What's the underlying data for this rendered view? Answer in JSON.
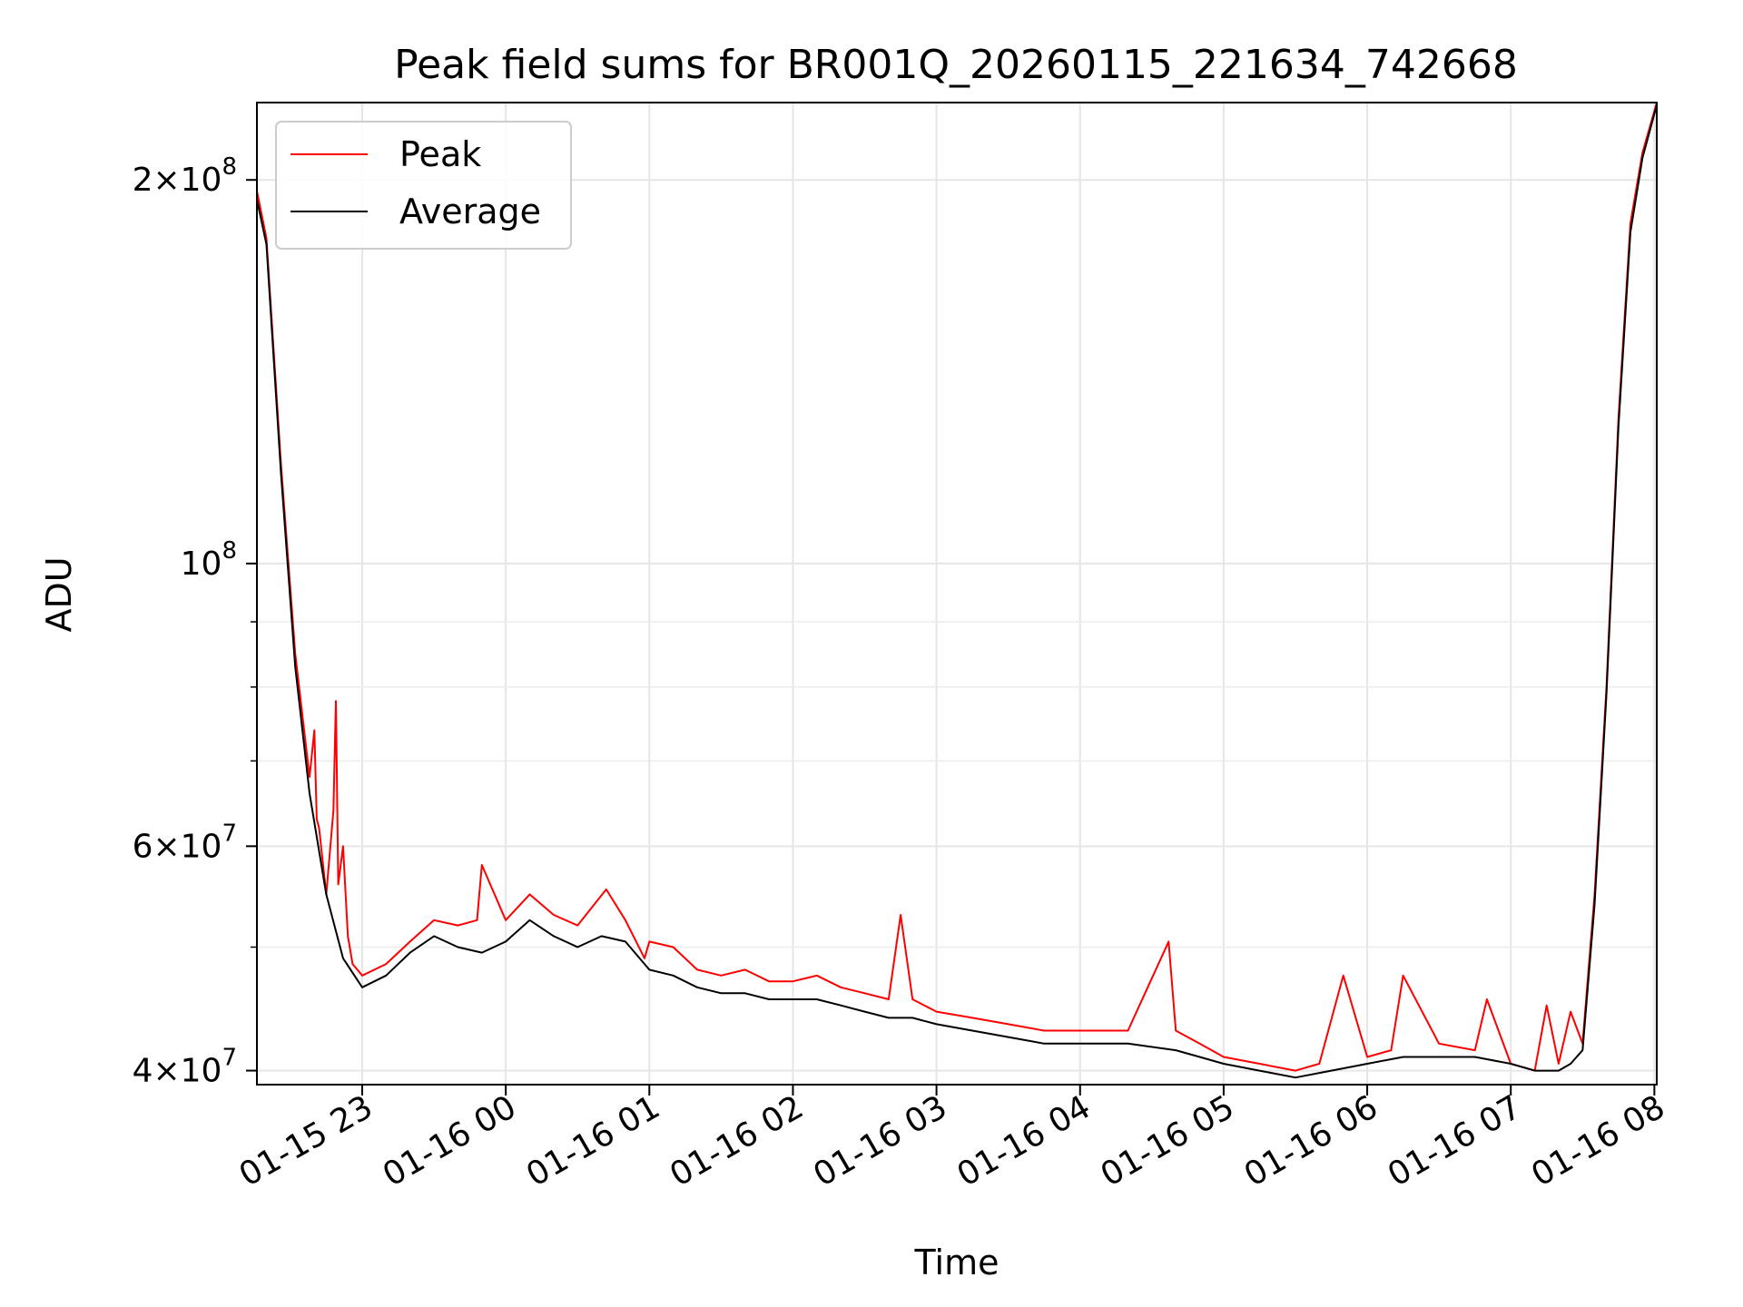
{
  "chart_data": {
    "type": "line",
    "title": "Peak field sums for BR001Q_20260115_221634_742668",
    "xlabel": "Time",
    "ylabel": "ADU",
    "yscale": "log",
    "ylim": [
      39000000,
      230000000
    ],
    "xlim": [
      "2026-01-15 22:16",
      "2026-01-16 08:01"
    ],
    "grid": true,
    "legend_position": "upper-left",
    "x_ticks": [
      {
        "value": "2026-01-15 23:00",
        "label": "01-15 23"
      },
      {
        "value": "2026-01-16 00:00",
        "label": "01-16 00"
      },
      {
        "value": "2026-01-16 01:00",
        "label": "01-16 01"
      },
      {
        "value": "2026-01-16 02:00",
        "label": "01-16 02"
      },
      {
        "value": "2026-01-16 03:00",
        "label": "01-16 03"
      },
      {
        "value": "2026-01-16 04:00",
        "label": "01-16 04"
      },
      {
        "value": "2026-01-16 05:00",
        "label": "01-16 05"
      },
      {
        "value": "2026-01-16 06:00",
        "label": "01-16 06"
      },
      {
        "value": "2026-01-16 07:00",
        "label": "01-16 07"
      },
      {
        "value": "2026-01-16 08:00",
        "label": "01-16 08"
      }
    ],
    "y_ticks": [
      {
        "value": 40000000,
        "mantissa": "4",
        "exponent": "7"
      },
      {
        "value": 60000000,
        "mantissa": "6",
        "exponent": "7"
      },
      {
        "value": 100000000,
        "mantissa": "",
        "exponent": "8"
      },
      {
        "value": 200000000,
        "mantissa": "2",
        "exponent": "8"
      }
    ],
    "y_minor_ticks": [
      50000000,
      70000000,
      80000000,
      90000000
    ],
    "series": [
      {
        "name": "Peak",
        "color": "#ff0000",
        "x": [
          "2026-01-15 22:16",
          "2026-01-15 22:20",
          "2026-01-15 22:26",
          "2026-01-15 22:32",
          "2026-01-15 22:38",
          "2026-01-15 22:40",
          "2026-01-15 22:41",
          "2026-01-15 22:42",
          "2026-01-15 22:45",
          "2026-01-15 22:48",
          "2026-01-15 22:49",
          "2026-01-15 22:50",
          "2026-01-15 22:52",
          "2026-01-15 22:54",
          "2026-01-15 22:56",
          "2026-01-15 23:00",
          "2026-01-15 23:10",
          "2026-01-15 23:20",
          "2026-01-15 23:30",
          "2026-01-15 23:40",
          "2026-01-15 23:48",
          "2026-01-15 23:50",
          "2026-01-16 00:00",
          "2026-01-16 00:10",
          "2026-01-16 00:20",
          "2026-01-16 00:30",
          "2026-01-16 00:42",
          "2026-01-16 00:50",
          "2026-01-16 00:58",
          "2026-01-16 01:00",
          "2026-01-16 01:10",
          "2026-01-16 01:20",
          "2026-01-16 01:30",
          "2026-01-16 01:40",
          "2026-01-16 01:50",
          "2026-01-16 02:00",
          "2026-01-16 02:10",
          "2026-01-16 02:20",
          "2026-01-16 02:30",
          "2026-01-16 02:40",
          "2026-01-16 02:45",
          "2026-01-16 02:50",
          "2026-01-16 03:00",
          "2026-01-16 03:15",
          "2026-01-16 03:30",
          "2026-01-16 03:45",
          "2026-01-16 04:00",
          "2026-01-16 04:20",
          "2026-01-16 04:37",
          "2026-01-16 04:40",
          "2026-01-16 04:50",
          "2026-01-16 05:00",
          "2026-01-16 05:15",
          "2026-01-16 05:30",
          "2026-01-16 05:40",
          "2026-01-16 05:50",
          "2026-01-16 06:00",
          "2026-01-16 06:10",
          "2026-01-16 06:15",
          "2026-01-16 06:30",
          "2026-01-16 06:45",
          "2026-01-16 06:50",
          "2026-01-16 07:00",
          "2026-01-16 07:10",
          "2026-01-16 07:15",
          "2026-01-16 07:20",
          "2026-01-16 07:25",
          "2026-01-16 07:30",
          "2026-01-16 07:35",
          "2026-01-16 07:40",
          "2026-01-16 07:45",
          "2026-01-16 07:50",
          "2026-01-16 07:55",
          "2026-01-16 08:01"
        ],
        "y": [
          196000000,
          180000000,
          120000000,
          85000000,
          68000000,
          74000000,
          63000000,
          62000000,
          55000000,
          64000000,
          78000000,
          56000000,
          60000000,
          51000000,
          48500000,
          47500000,
          48500000,
          50500000,
          52500000,
          52000000,
          52500000,
          58000000,
          52500000,
          55000000,
          53000000,
          52000000,
          55500000,
          52500000,
          49000000,
          50500000,
          50000000,
          48000000,
          47500000,
          48000000,
          47000000,
          47000000,
          47500000,
          46500000,
          46000000,
          45500000,
          53000000,
          45500000,
          44500000,
          44000000,
          43500000,
          43000000,
          43000000,
          43000000,
          50500000,
          43000000,
          42000000,
          41000000,
          40500000,
          40000000,
          40500000,
          47500000,
          41000000,
          41500000,
          47500000,
          42000000,
          41500000,
          45500000,
          40500000,
          40000000,
          45000000,
          40500000,
          44500000,
          42000000,
          55000000,
          80000000,
          130000000,
          185000000,
          210000000,
          230000000
        ]
      },
      {
        "name": "Average",
        "color": "#000000",
        "x": [
          "2026-01-15 22:16",
          "2026-01-15 22:20",
          "2026-01-15 22:26",
          "2026-01-15 22:32",
          "2026-01-15 22:38",
          "2026-01-15 22:45",
          "2026-01-15 22:52",
          "2026-01-15 23:00",
          "2026-01-15 23:10",
          "2026-01-15 23:20",
          "2026-01-15 23:30",
          "2026-01-15 23:40",
          "2026-01-15 23:50",
          "2026-01-16 00:00",
          "2026-01-16 00:10",
          "2026-01-16 00:20",
          "2026-01-16 00:30",
          "2026-01-16 00:40",
          "2026-01-16 00:50",
          "2026-01-16 01:00",
          "2026-01-16 01:10",
          "2026-01-16 01:20",
          "2026-01-16 01:30",
          "2026-01-16 01:40",
          "2026-01-16 01:50",
          "2026-01-16 02:00",
          "2026-01-16 02:10",
          "2026-01-16 02:20",
          "2026-01-16 02:30",
          "2026-01-16 02:40",
          "2026-01-16 02:50",
          "2026-01-16 03:00",
          "2026-01-16 03:15",
          "2026-01-16 03:30",
          "2026-01-16 03:45",
          "2026-01-16 04:00",
          "2026-01-16 04:20",
          "2026-01-16 04:40",
          "2026-01-16 04:50",
          "2026-01-16 05:00",
          "2026-01-16 05:15",
          "2026-01-16 05:30",
          "2026-01-16 05:45",
          "2026-01-16 06:00",
          "2026-01-16 06:15",
          "2026-01-16 06:30",
          "2026-01-16 06:45",
          "2026-01-16 07:00",
          "2026-01-16 07:10",
          "2026-01-16 07:20",
          "2026-01-16 07:25",
          "2026-01-16 07:30",
          "2026-01-16 07:35",
          "2026-01-16 07:40",
          "2026-01-16 07:45",
          "2026-01-16 07:50",
          "2026-01-16 07:55",
          "2026-01-16 08:01"
        ],
        "y": [
          193000000,
          178000000,
          118000000,
          83000000,
          66000000,
          55000000,
          49000000,
          46500000,
          47500000,
          49500000,
          51000000,
          50000000,
          49500000,
          50500000,
          52500000,
          51000000,
          50000000,
          51000000,
          50500000,
          48000000,
          47500000,
          46500000,
          46000000,
          46000000,
          45500000,
          45500000,
          45500000,
          45000000,
          44500000,
          44000000,
          44000000,
          43500000,
          43000000,
          42500000,
          42000000,
          42000000,
          42000000,
          41500000,
          41000000,
          40500000,
          40000000,
          39500000,
          40000000,
          40500000,
          41000000,
          41000000,
          41000000,
          40500000,
          40000000,
          40000000,
          40500000,
          41500000,
          54000000,
          79000000,
          128000000,
          182000000,
          208000000,
          229000000
        ]
      }
    ]
  }
}
